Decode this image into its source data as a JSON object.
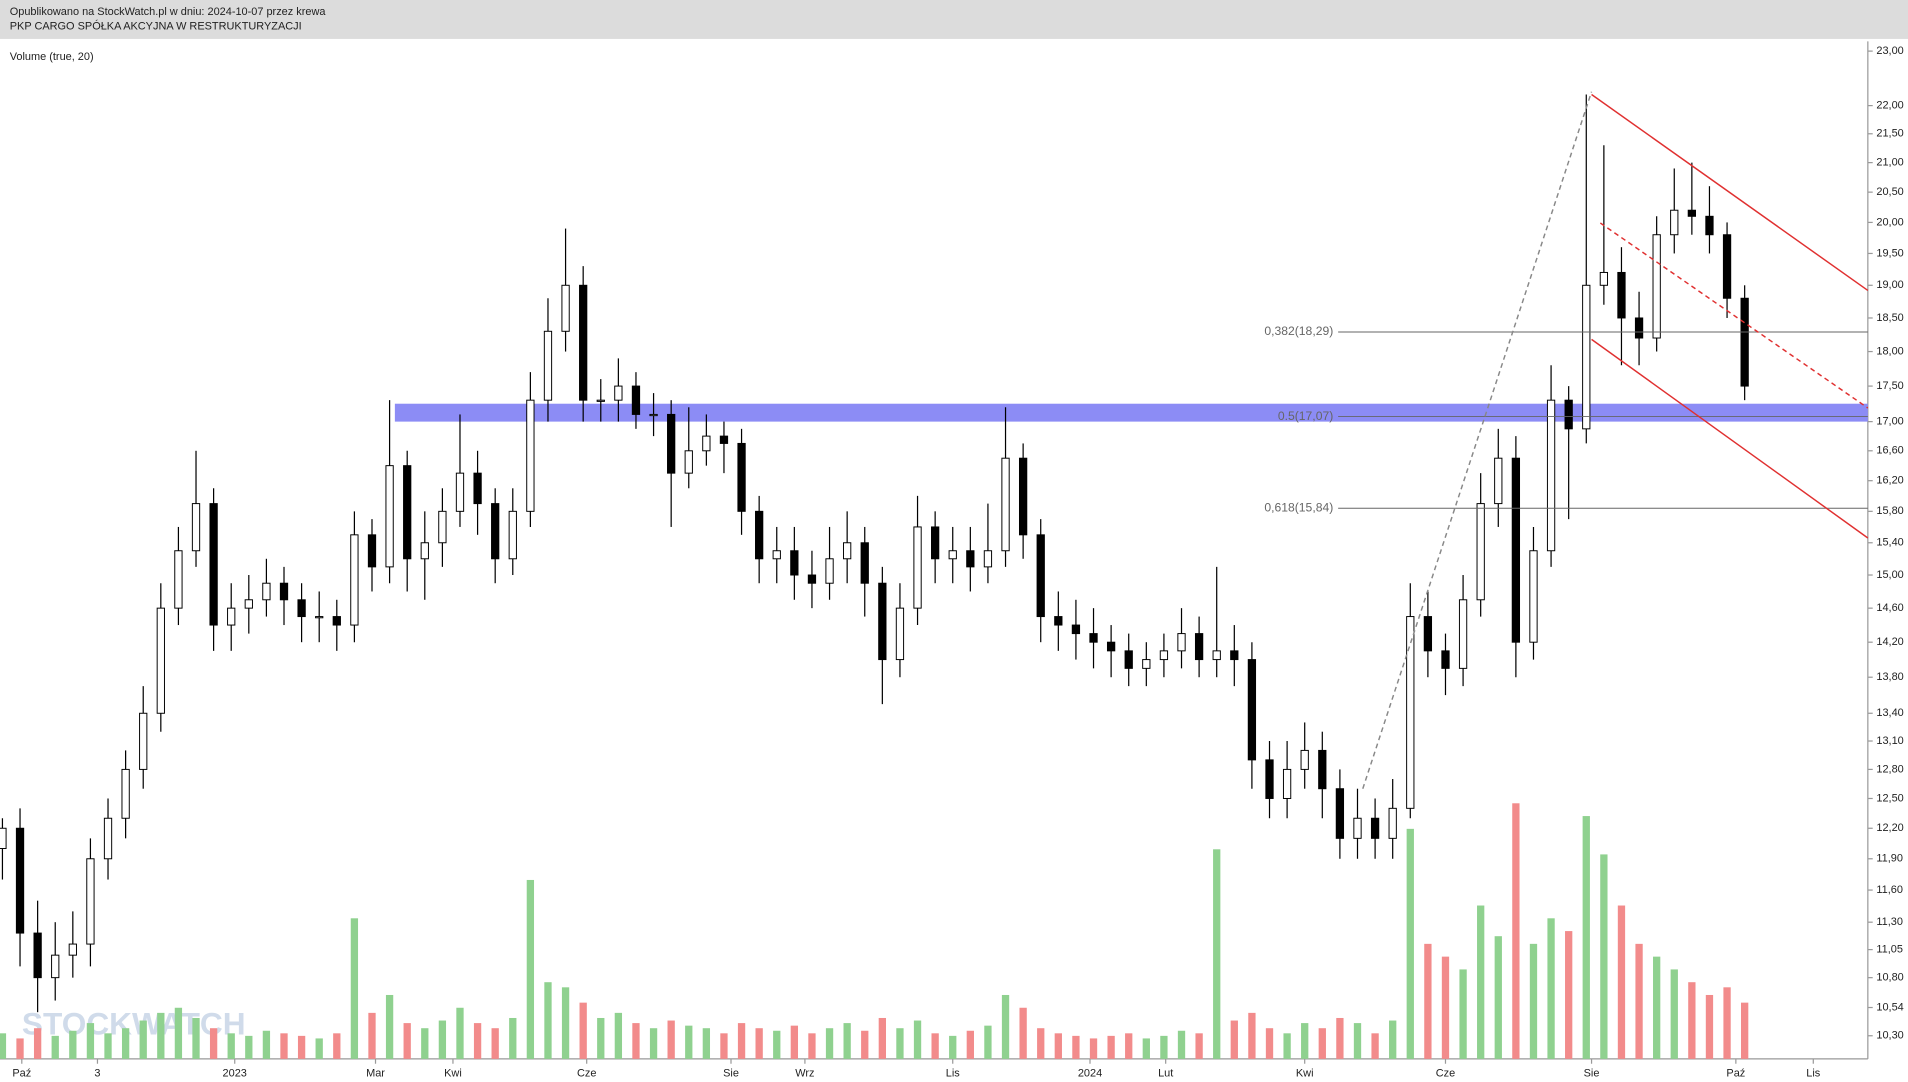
{
  "header": {
    "line1": "Opublikowano na StockWatch.pl w dniu: 2024-10-07 przez krewa",
    "line2": "PKP CARGO SPÓŁKA AKCYJNA W RESTRUKTURYZACJI"
  },
  "chart_data": {
    "type": "candlestick",
    "indicator_label": "Volume (true, 20)",
    "watermark": "STOCKWATCH",
    "log_scale": true,
    "ylim": [
      10.3,
      23
    ],
    "yticks": [
      {
        "value": 23,
        "label": "23,00"
      },
      {
        "value": 22,
        "label": "22,00"
      },
      {
        "value": 21.5,
        "label": "21,50"
      },
      {
        "value": 21,
        "label": "21,00"
      },
      {
        "value": 20.5,
        "label": "20,50"
      },
      {
        "value": 20,
        "label": "20,00"
      },
      {
        "value": 19.5,
        "label": "19,50"
      },
      {
        "value": 19,
        "label": "19,00"
      },
      {
        "value": 18.5,
        "label": "18,50"
      },
      {
        "value": 18,
        "label": "18,00"
      },
      {
        "value": 17.5,
        "label": "17,50"
      },
      {
        "value": 17,
        "label": "17,00"
      },
      {
        "value": 16.6,
        "label": "16,60"
      },
      {
        "value": 16.2,
        "label": "16,20"
      },
      {
        "value": 15.8,
        "label": "15,80"
      },
      {
        "value": 15.4,
        "label": "15,40"
      },
      {
        "value": 15,
        "label": "15,00"
      },
      {
        "value": 14.6,
        "label": "14,60"
      },
      {
        "value": 14.2,
        "label": "14,20"
      },
      {
        "value": 13.8,
        "label": "13,80"
      },
      {
        "value": 13.4,
        "label": "13,40"
      },
      {
        "value": 13.1,
        "label": "13,10"
      },
      {
        "value": 12.8,
        "label": "12,80"
      },
      {
        "value": 12.5,
        "label": "12,50"
      },
      {
        "value": 12.2,
        "label": "12,20"
      },
      {
        "value": 11.9,
        "label": "11,90"
      },
      {
        "value": 11.6,
        "label": "11,60"
      },
      {
        "value": 11.3,
        "label": "11,30"
      },
      {
        "value": 11.05,
        "label": "11,05"
      },
      {
        "value": 10.8,
        "label": "10,80"
      },
      {
        "value": 10.54,
        "label": "10,54"
      },
      {
        "value": 10.3,
        "label": "10,30"
      }
    ],
    "xlim": [
      0,
      106
    ],
    "xticks": [
      {
        "value": 1.1,
        "label": "Paź"
      },
      {
        "value": 5.4,
        "label": "3"
      },
      {
        "value": 13.2,
        "label": "2023"
      },
      {
        "value": 21.2,
        "label": "Mar"
      },
      {
        "value": 25.6,
        "label": "Kwi"
      },
      {
        "value": 33.2,
        "label": "Cze"
      },
      {
        "value": 41.4,
        "label": "Sie"
      },
      {
        "value": 45.6,
        "label": "Wrz"
      },
      {
        "value": 54.0,
        "label": "Lis"
      },
      {
        "value": 61.8,
        "label": "2024"
      },
      {
        "value": 66.1,
        "label": "Lut"
      },
      {
        "value": 74.0,
        "label": "Kwi"
      },
      {
        "value": 82.0,
        "label": "Cze"
      },
      {
        "value": 90.3,
        "label": "Sie"
      },
      {
        "value": 98.5,
        "label": "Paź"
      },
      {
        "value": 102.9,
        "label": "Lis"
      }
    ],
    "up_color": "#ffffff",
    "down_color": "#000000",
    "volume_up_color": "#8fd18f",
    "volume_down_color": "#f28b8b",
    "open": [
      12.0,
      12.2,
      11.2,
      10.8,
      11.0,
      11.1,
      11.9,
      12.3,
      12.8,
      13.4,
      14.6,
      15.3,
      15.9,
      14.4,
      14.6,
      14.7,
      14.9,
      14.7,
      14.5,
      14.5,
      14.4,
      15.5,
      15.1,
      16.4,
      15.2,
      15.4,
      15.8,
      16.3,
      15.9,
      15.2,
      15.8,
      17.3,
      18.3,
      19.0,
      17.3,
      17.3,
      17.5,
      17.1,
      17.1,
      16.3,
      16.6,
      16.8,
      16.7,
      15.8,
      15.2,
      15.3,
      15.0,
      14.9,
      15.2,
      15.4,
      14.9,
      14.0,
      14.6,
      15.6,
      15.2,
      15.3,
      15.1,
      15.3,
      16.5,
      15.5,
      14.5,
      14.4,
      14.3,
      14.2,
      14.1,
      13.9,
      14.0,
      14.1,
      14.3,
      14.0,
      14.1,
      14.0,
      12.9,
      12.5,
      12.8,
      13.0,
      12.6,
      12.1,
      12.3,
      12.1,
      12.4,
      14.5,
      14.1,
      13.9,
      14.7,
      15.9,
      16.5,
      14.2,
      15.3,
      17.3,
      16.9,
      19.0,
      19.2,
      18.5,
      18.2,
      19.8,
      20.2,
      20.1,
      19.8,
      18.8
    ],
    "high": [
      12.3,
      12.4,
      11.5,
      11.3,
      11.4,
      12.1,
      12.5,
      13.0,
      13.7,
      14.9,
      15.6,
      16.6,
      16.1,
      14.9,
      15.0,
      15.2,
      15.1,
      14.9,
      14.8,
      14.7,
      15.8,
      15.7,
      17.3,
      16.6,
      15.8,
      16.1,
      17.1,
      16.6,
      16.1,
      16.1,
      17.7,
      18.8,
      19.9,
      19.3,
      17.6,
      17.9,
      17.7,
      17.4,
      17.3,
      17.2,
      17.1,
      17.0,
      16.9,
      16.0,
      15.6,
      15.6,
      15.3,
      15.6,
      15.8,
      15.6,
      15.1,
      14.9,
      16.0,
      15.8,
      15.6,
      15.6,
      15.9,
      17.2,
      16.7,
      15.7,
      14.8,
      14.7,
      14.6,
      14.4,
      14.3,
      14.2,
      14.3,
      14.6,
      14.5,
      15.1,
      14.4,
      14.2,
      13.1,
      13.1,
      13.3,
      13.2,
      12.8,
      12.6,
      12.5,
      12.7,
      14.9,
      14.8,
      14.3,
      15.0,
      16.3,
      16.9,
      16.8,
      15.6,
      17.8,
      17.5,
      22.2,
      21.3,
      19.6,
      18.9,
      20.1,
      20.9,
      21.0,
      20.6,
      20.0,
      19.0
    ],
    "low": [
      11.7,
      10.9,
      10.5,
      10.6,
      10.8,
      10.9,
      11.7,
      12.1,
      12.6,
      13.2,
      14.4,
      15.1,
      14.1,
      14.1,
      14.3,
      14.5,
      14.4,
      14.2,
      14.2,
      14.1,
      14.2,
      14.8,
      14.9,
      14.8,
      14.7,
      15.1,
      15.6,
      15.5,
      14.9,
      15.0,
      15.6,
      17.0,
      18.0,
      17.0,
      17.0,
      17.0,
      16.9,
      16.8,
      15.6,
      16.1,
      16.4,
      16.3,
      15.5,
      14.9,
      14.9,
      14.7,
      14.6,
      14.7,
      14.9,
      14.5,
      13.5,
      13.8,
      14.4,
      14.9,
      14.9,
      14.8,
      14.9,
      15.1,
      15.2,
      14.2,
      14.1,
      14.0,
      13.9,
      13.8,
      13.7,
      13.7,
      13.8,
      13.9,
      13.8,
      13.8,
      13.7,
      12.6,
      12.3,
      12.3,
      12.6,
      12.3,
      11.9,
      11.9,
      11.9,
      11.9,
      12.3,
      13.8,
      13.6,
      13.7,
      14.5,
      15.6,
      13.8,
      14.0,
      15.1,
      15.7,
      16.7,
      18.7,
      17.8,
      17.8,
      18.0,
      19.5,
      19.8,
      19.5,
      18.5,
      17.3
    ],
    "close": [
      12.2,
      11.2,
      10.8,
      11.0,
      11.1,
      11.9,
      12.3,
      12.8,
      13.4,
      14.6,
      15.3,
      15.9,
      14.4,
      14.6,
      14.7,
      14.9,
      14.7,
      14.5,
      14.5,
      14.4,
      15.5,
      15.1,
      16.4,
      15.2,
      15.4,
      15.8,
      16.3,
      15.9,
      15.2,
      15.8,
      17.3,
      18.3,
      19.0,
      17.3,
      17.3,
      17.5,
      17.1,
      17.1,
      16.3,
      16.6,
      16.8,
      16.7,
      15.8,
      15.2,
      15.3,
      15.0,
      14.9,
      15.2,
      15.4,
      14.9,
      14.0,
      14.6,
      15.6,
      15.2,
      15.3,
      15.1,
      15.3,
      16.5,
      15.5,
      14.5,
      14.4,
      14.3,
      14.2,
      14.1,
      13.9,
      14.0,
      14.1,
      14.3,
      14.0,
      14.1,
      14.0,
      12.9,
      12.5,
      12.8,
      13.0,
      12.6,
      12.1,
      12.3,
      12.1,
      12.4,
      14.5,
      14.1,
      13.9,
      14.7,
      15.9,
      16.5,
      14.2,
      15.3,
      17.3,
      16.9,
      19.0,
      19.2,
      18.5,
      18.2,
      19.8,
      20.2,
      20.1,
      19.8,
      18.8,
      17.5
    ],
    "volume": [
      10,
      8,
      12,
      9,
      11,
      14,
      10,
      12,
      15,
      18,
      20,
      16,
      12,
      10,
      9,
      11,
      10,
      9,
      8,
      10,
      55,
      18,
      25,
      14,
      12,
      15,
      20,
      14,
      12,
      16,
      70,
      30,
      28,
      22,
      16,
      18,
      14,
      12,
      15,
      13,
      12,
      10,
      14,
      12,
      11,
      13,
      10,
      12,
      14,
      11,
      16,
      12,
      15,
      10,
      9,
      11,
      13,
      25,
      20,
      12,
      10,
      9,
      8,
      9,
      10,
      8,
      9,
      11,
      10,
      82,
      15,
      18,
      12,
      10,
      14,
      12,
      16,
      14,
      10,
      15,
      90,
      45,
      40,
      35,
      60,
      48,
      100,
      45,
      55,
      50,
      95,
      80,
      60,
      45,
      40,
      35,
      30,
      25,
      28,
      22
    ],
    "band": {
      "from": 17.0,
      "to": 17.25,
      "x_start": 22.3,
      "color": "#8c8cf5"
    },
    "fib_levels": [
      {
        "value": 18.29,
        "label": "0,382(18,29)"
      },
      {
        "value": 17.07,
        "label": "0.5(17,07)"
      },
      {
        "value": 15.84,
        "label": "0,618(15,84)"
      }
    ],
    "fib_x_start": 75.9,
    "trendlines": [
      {
        "x": [
          90.3,
          106
        ],
        "y": [
          22.2,
          18.92
        ],
        "color": "#e03030",
        "dashed": false
      },
      {
        "x": [
          90.3,
          106
        ],
        "y": [
          18.18,
          15.46
        ],
        "color": "#e03030",
        "dashed": false
      },
      {
        "x": [
          90.8,
          106
        ],
        "y": [
          19.99,
          17.19
        ],
        "color": "#e03030",
        "dashed": true
      },
      {
        "x": [
          77.3,
          90.3
        ],
        "y": [
          12.6,
          22.25
        ],
        "color": "#888888",
        "dashed": true
      }
    ]
  }
}
